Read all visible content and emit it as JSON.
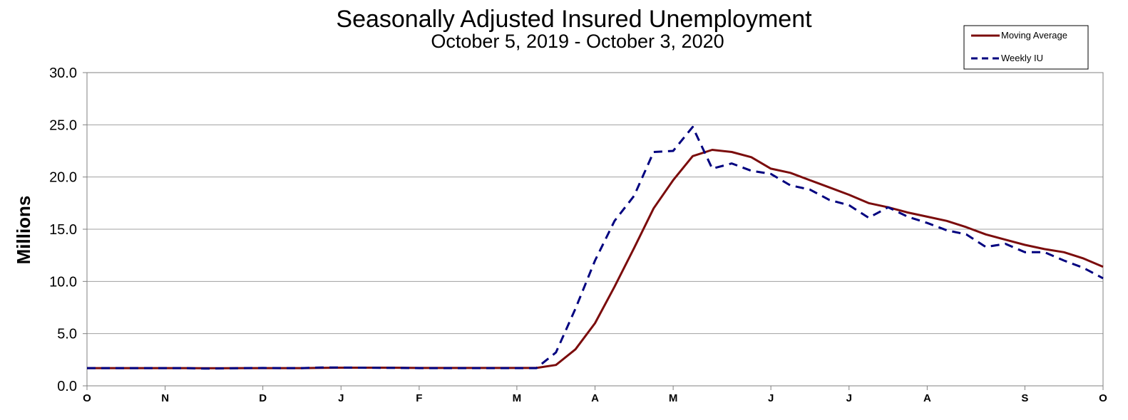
{
  "chart_data": {
    "type": "line",
    "title": "Seasonally Adjusted Insured Unemployment",
    "subtitle": "October 5, 2019 - October 3, 2020",
    "xlabel": "",
    "ylabel": "Millions",
    "ylim": [
      0,
      30
    ],
    "yticks": [
      "0.0",
      "5.0",
      "10.0",
      "15.0",
      "20.0",
      "25.0",
      "30.0"
    ],
    "x_start": "2019-10-05",
    "x_end": "2020-10-03",
    "x_tick_labels": [
      {
        "label": "O",
        "date": "2019-10-05"
      },
      {
        "label": "N",
        "date": "2019-11-02"
      },
      {
        "label": "D",
        "date": "2019-12-07"
      },
      {
        "label": "J",
        "date": "2020-01-04"
      },
      {
        "label": "F",
        "date": "2020-02-01"
      },
      {
        "label": "M",
        "date": "2020-03-07"
      },
      {
        "label": "A",
        "date": "2020-04-04"
      },
      {
        "label": "M",
        "date": "2020-05-02"
      },
      {
        "label": "J",
        "date": "2020-06-06"
      },
      {
        "label": "J",
        "date": "2020-07-04"
      },
      {
        "label": "A",
        "date": "2020-08-01"
      },
      {
        "label": "S",
        "date": "2020-09-05"
      },
      {
        "label": "O",
        "date": "2020-10-03"
      }
    ],
    "grid": true,
    "legend_position": "top-right",
    "dates": [
      "2019-10-05",
      "2019-10-12",
      "2019-10-19",
      "2019-10-26",
      "2019-11-02",
      "2019-11-09",
      "2019-11-16",
      "2019-11-23",
      "2019-11-30",
      "2019-12-07",
      "2019-12-14",
      "2019-12-21",
      "2019-12-28",
      "2020-01-04",
      "2020-01-11",
      "2020-01-18",
      "2020-01-25",
      "2020-02-01",
      "2020-02-08",
      "2020-02-15",
      "2020-02-22",
      "2020-02-29",
      "2020-03-07",
      "2020-03-14",
      "2020-03-21",
      "2020-03-28",
      "2020-04-04",
      "2020-04-11",
      "2020-04-18",
      "2020-04-25",
      "2020-05-02",
      "2020-05-09",
      "2020-05-16",
      "2020-05-23",
      "2020-05-30",
      "2020-06-06",
      "2020-06-13",
      "2020-06-20",
      "2020-06-27",
      "2020-07-04",
      "2020-07-11",
      "2020-07-18",
      "2020-07-25",
      "2020-08-01",
      "2020-08-08",
      "2020-08-15",
      "2020-08-22",
      "2020-08-29",
      "2020-09-05",
      "2020-09-12",
      "2020-09-19",
      "2020-09-26",
      "2020-10-03"
    ],
    "series": [
      {
        "name": "Moving Average",
        "color": "#7b0c0c",
        "style": "solid",
        "values": [
          1.7,
          1.7,
          1.7,
          1.7,
          1.7,
          1.7,
          1.69,
          1.69,
          1.7,
          1.7,
          1.7,
          1.7,
          1.72,
          1.74,
          1.74,
          1.74,
          1.73,
          1.71,
          1.71,
          1.71,
          1.71,
          1.71,
          1.71,
          1.71,
          2.0,
          3.5,
          6.0,
          9.5,
          13.2,
          17.0,
          19.7,
          22.0,
          22.6,
          22.4,
          21.9,
          20.8,
          20.4,
          19.7,
          19.0,
          18.3,
          17.5,
          17.1,
          16.6,
          16.2,
          15.8,
          15.2,
          14.5,
          14.0,
          13.5,
          13.1,
          12.8,
          12.2,
          11.4
        ]
      },
      {
        "name": "Weekly IU",
        "color": "#00007f",
        "style": "dashed",
        "values": [
          1.7,
          1.7,
          1.7,
          1.7,
          1.7,
          1.7,
          1.65,
          1.67,
          1.7,
          1.71,
          1.7,
          1.7,
          1.75,
          1.75,
          1.74,
          1.72,
          1.72,
          1.7,
          1.7,
          1.7,
          1.7,
          1.7,
          1.7,
          1.7,
          3.2,
          7.4,
          12.0,
          15.8,
          18.2,
          22.4,
          22.5,
          24.8,
          20.8,
          21.3,
          20.6,
          20.3,
          19.2,
          18.8,
          17.8,
          17.3,
          16.1,
          17.1,
          16.2,
          15.6,
          14.9,
          14.5,
          13.3,
          13.6,
          12.8,
          12.8,
          12.0,
          11.3,
          10.3
        ]
      }
    ]
  }
}
